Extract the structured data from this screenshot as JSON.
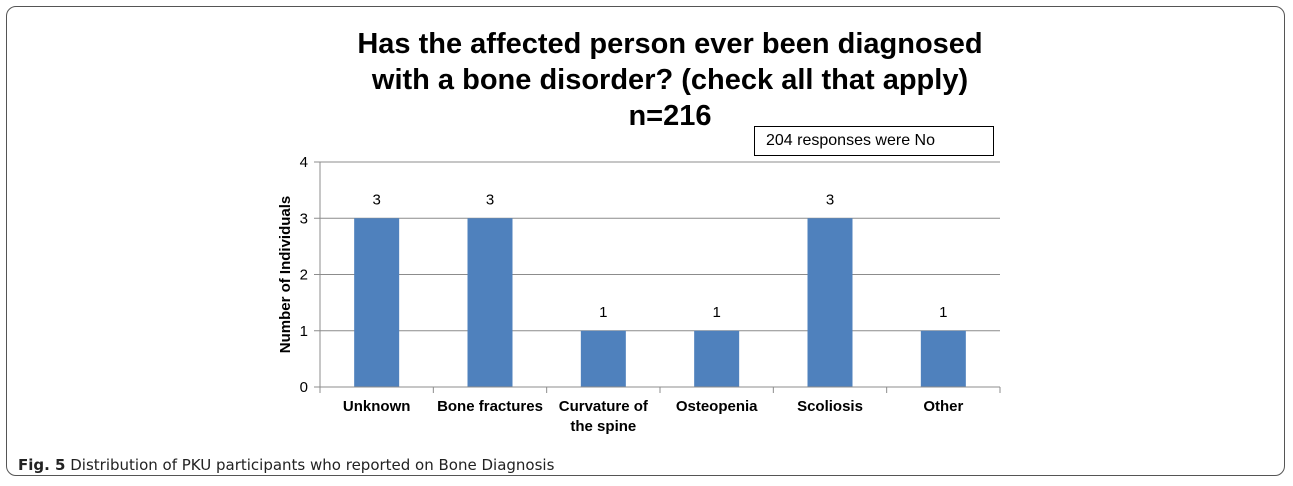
{
  "chart_data": {
    "type": "bar",
    "title_lines": [
      "Has the affected person ever been diagnosed",
      "with a bone disorder? (check all that apply)",
      "n=216"
    ],
    "annotation": "204 responses were No",
    "ylabel": "Number of Individuals",
    "xlabel": "",
    "ylim": [
      0,
      4
    ],
    "yticks": [
      "0",
      "1",
      "2",
      "3",
      "4"
    ],
    "categories": [
      [
        "Unknown"
      ],
      [
        "Bone fractures"
      ],
      [
        "Curvature of",
        "the spine"
      ],
      [
        "Osteopenia"
      ],
      [
        "Scoliosis"
      ],
      [
        "Other"
      ]
    ],
    "values": [
      3,
      3,
      1,
      1,
      3,
      1
    ],
    "grid": true,
    "bar_color": "#4f81bd"
  },
  "caption": {
    "label": "Fig. 5",
    "text": " Distribution of PKU participants who reported on Bone Diagnosis"
  }
}
